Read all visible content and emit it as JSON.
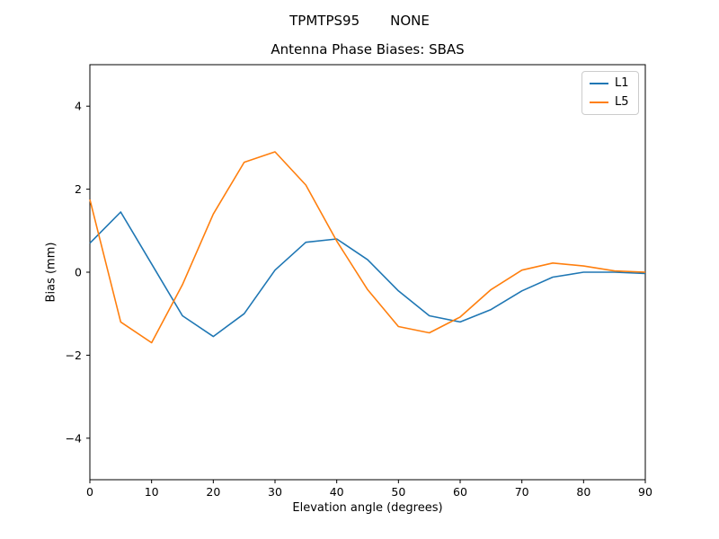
{
  "header": {
    "suptitle_left": "TPMTPS95",
    "suptitle_right": "NONE"
  },
  "chart_data": {
    "type": "line",
    "title": "Antenna Phase Biases: SBAS",
    "xlabel": "Elevation angle (degrees)",
    "ylabel": "Bias (mm)",
    "xlim": [
      0,
      90
    ],
    "ylim": [
      -5,
      5
    ],
    "grid": false,
    "legend_position": "upper right",
    "xticks": [
      0,
      10,
      20,
      30,
      40,
      50,
      60,
      70,
      80,
      90
    ],
    "xtick_labels": [
      "0",
      "10",
      "20",
      "30",
      "40",
      "50",
      "60",
      "70",
      "80",
      "90"
    ],
    "yticks": [
      -4,
      -2,
      0,
      2,
      4
    ],
    "ytick_labels": [
      "−4",
      "−2",
      "0",
      "2",
      "4"
    ],
    "x": [
      0,
      5,
      10,
      15,
      20,
      25,
      30,
      35,
      40,
      45,
      50,
      55,
      60,
      65,
      70,
      75,
      80,
      85,
      90
    ],
    "series": [
      {
        "name": "L1",
        "color": "#1f77b4",
        "values": [
          0.7,
          1.45,
          0.2,
          -1.05,
          -1.55,
          -1.0,
          0.05,
          0.72,
          0.8,
          0.3,
          -0.45,
          -1.05,
          -1.2,
          -0.9,
          -0.45,
          -0.12,
          0.0,
          0.0,
          -0.03
        ]
      },
      {
        "name": "L5",
        "color": "#ff7f0e",
        "values": [
          1.75,
          -1.2,
          -1.7,
          -0.3,
          1.4,
          2.65,
          2.9,
          2.1,
          0.75,
          -0.42,
          -1.31,
          -1.46,
          -1.08,
          -0.42,
          0.05,
          0.22,
          0.15,
          0.03,
          0.0
        ]
      }
    ]
  },
  "style": {
    "axis_color": "#000000",
    "legend_border_color": "#cccccc"
  }
}
